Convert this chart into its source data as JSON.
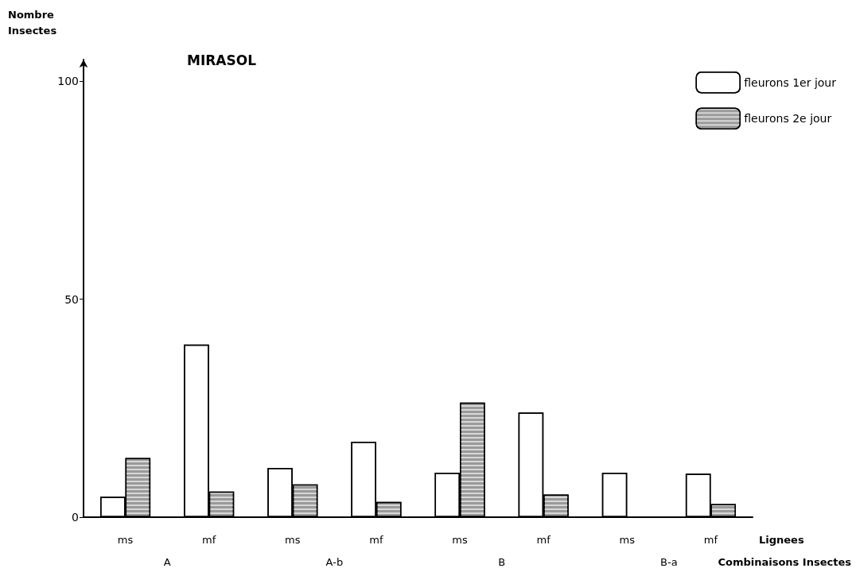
{
  "chart_data": {
    "type": "bar",
    "title": "MIRASOL",
    "ylabel": "Nombre\nInsectes",
    "xlabel": "Lignees",
    "categories": [
      "ms",
      "mf",
      "ms",
      "mf",
      "ms",
      "mf",
      "ms",
      "mf"
    ],
    "series": [
      {
        "name": "fleurons 1er jour",
        "color": "#ffffff",
        "values": [
          4.7,
          39.6,
          11.3,
          17.3,
          10.2,
          24,
          10.2,
          10
        ]
      },
      {
        "name": "fleurons 2e jour",
        "color": "#9a9a9a",
        "values": [
          13.6,
          5.9,
          7.5,
          3.5,
          26.3,
          5.2,
          null,
          3
        ]
      }
    ],
    "annotations": [
      "A",
      "A-b",
      "B",
      "B-a",
      "Combinaisons Insectes"
    ],
    "ylim": [
      0,
      105
    ],
    "yticks": [
      0,
      50,
      100
    ],
    "grid": false,
    "legend": "top right"
  }
}
